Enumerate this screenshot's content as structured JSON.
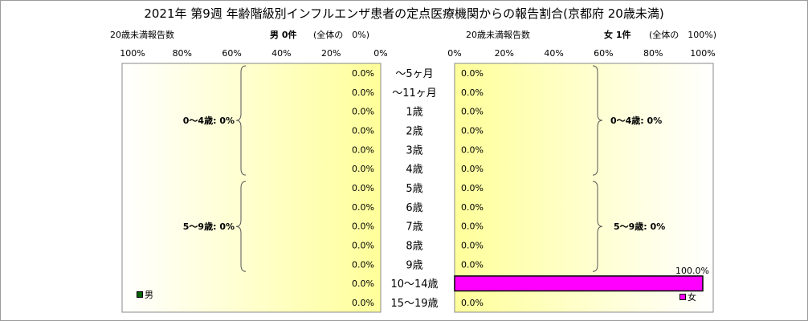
{
  "title": "2021年 第9週 年齢階級別インフルエンザ患者の定点医療機関からの報告割合(京都府 20歳未満)",
  "left_panel": {
    "count_label": "20歳未満報告数",
    "sex_label": "男 0件",
    "share_label": "(全体の　0%)",
    "legend_label": "男",
    "bracket_labels": [
      "0〜4歳: 0%",
      "5〜9歳: 0%"
    ]
  },
  "right_panel": {
    "count_label": "20歳未満報告数",
    "sex_label": "女 1件",
    "share_label": "(全体の　100%)",
    "legend_label": "女",
    "bracket_labels": [
      "0〜4歳: 0%",
      "5〜9歳: 0%"
    ]
  },
  "chart_data": {
    "type": "bar",
    "title": "2021年 第9週 年齢階級別インフルエンザ患者の定点医療機関からの報告割合(京都府 20歳未満)",
    "categories": [
      "〜5ヶ月",
      "〜11ヶ月",
      "1歳",
      "2歳",
      "3歳",
      "4歳",
      "5歳",
      "6歳",
      "7歳",
      "8歳",
      "9歳",
      "10〜14歳",
      "15〜19歳"
    ],
    "x_ticks": [
      "0%",
      "20%",
      "40%",
      "60%",
      "80%",
      "100%"
    ],
    "xlim": [
      0,
      100
    ],
    "orientation": "horizontal",
    "series": [
      {
        "name": "男",
        "color": "#006400",
        "values": [
          0,
          0,
          0,
          0,
          0,
          0,
          0,
          0,
          0,
          0,
          0,
          0,
          0
        ],
        "value_labels": [
          "0.0%",
          "0.0%",
          "0.0%",
          "0.0%",
          "0.0%",
          "0.0%",
          "0.0%",
          "0.0%",
          "0.0%",
          "0.0%",
          "0.0%",
          "0.0%",
          "0.0%"
        ]
      },
      {
        "name": "女",
        "color": "#ff00ff",
        "values": [
          0,
          0,
          0,
          0,
          0,
          0,
          0,
          0,
          0,
          0,
          0,
          100,
          0
        ],
        "value_labels": [
          "0.0%",
          "0.0%",
          "0.0%",
          "0.0%",
          "0.0%",
          "0.0%",
          "0.0%",
          "0.0%",
          "0.0%",
          "0.0%",
          "0.0%",
          "100.0%",
          "0.0%"
        ]
      }
    ]
  }
}
